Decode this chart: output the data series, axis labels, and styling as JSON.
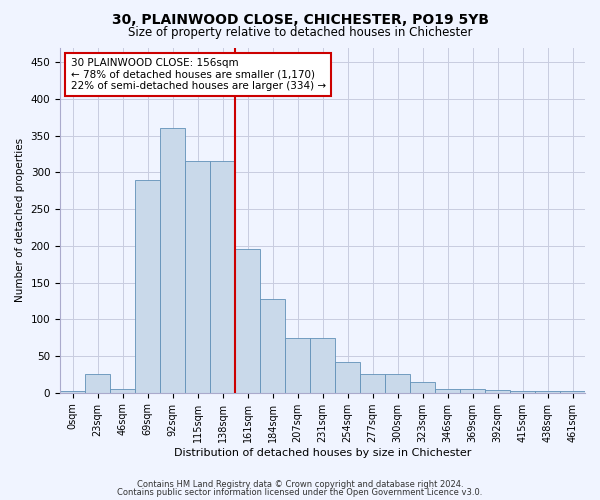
{
  "title1": "30, PLAINWOOD CLOSE, CHICHESTER, PO19 5YB",
  "title2": "Size of property relative to detached houses in Chichester",
  "xlabel": "Distribution of detached houses by size in Chichester",
  "ylabel": "Number of detached properties",
  "bin_labels": [
    "0sqm",
    "23sqm",
    "46sqm",
    "69sqm",
    "92sqm",
    "115sqm",
    "138sqm",
    "161sqm",
    "184sqm",
    "207sqm",
    "231sqm",
    "254sqm",
    "277sqm",
    "300sqm",
    "323sqm",
    "346sqm",
    "369sqm",
    "392sqm",
    "415sqm",
    "438sqm",
    "461sqm"
  ],
  "bar_heights": [
    2,
    25,
    5,
    290,
    360,
    315,
    315,
    195,
    128,
    75,
    75,
    42,
    25,
    25,
    15,
    5,
    5,
    4,
    2,
    2,
    2
  ],
  "bar_color": "#c9d9ea",
  "bar_edge_color": "#6090b8",
  "vline_x": 7,
  "vline_color": "#cc0000",
  "annotation_text": "30 PLAINWOOD CLOSE: 156sqm\n← 78% of detached houses are smaller (1,170)\n22% of semi-detached houses are larger (334) →",
  "annotation_box_color": "white",
  "annotation_box_edge": "#cc0000",
  "ylim": [
    0,
    470
  ],
  "yticks": [
    0,
    50,
    100,
    150,
    200,
    250,
    300,
    350,
    400,
    450
  ],
  "footer1": "Contains HM Land Registry data © Crown copyright and database right 2024.",
  "footer2": "Contains public sector information licensed under the Open Government Licence v3.0.",
  "bg_color": "#f0f4ff",
  "grid_color": "#c8cce0",
  "title1_fontsize": 10,
  "title2_fontsize": 8.5,
  "xlabel_fontsize": 8,
  "ylabel_fontsize": 7.5,
  "tick_fontsize": 7,
  "annot_fontsize": 7.5,
  "footer_fontsize": 6
}
